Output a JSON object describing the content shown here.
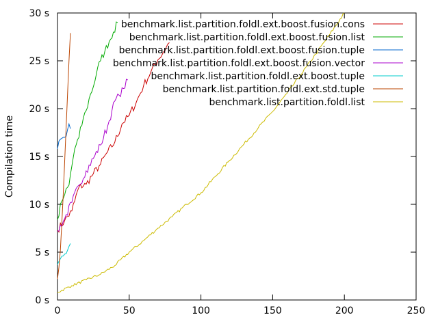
{
  "chart_data": {
    "type": "line",
    "title": "",
    "xlabel": "",
    "ylabel": "Compilation time",
    "xlim": [
      0,
      250
    ],
    "ylim": [
      0,
      30
    ],
    "x_ticks": [
      "0",
      "50",
      "100",
      "150",
      "200",
      "250"
    ],
    "y_ticks": [
      "0 s",
      "5 s",
      "10 s",
      "15 s",
      "20 s",
      "25 s",
      "30 s"
    ],
    "grid": false,
    "legend_position": "top-right",
    "series": [
      {
        "name": "benchmark.list.partition.foldl.ext.boost.fusion.cons",
        "color": "#cc0000",
        "points": [
          [
            0,
            7.3
          ],
          [
            5,
            8.3
          ],
          [
            10,
            9.3
          ],
          [
            15,
            11.8
          ],
          [
            20,
            12.1
          ],
          [
            25,
            13.2
          ],
          [
            30,
            14.2
          ],
          [
            35,
            15.5
          ],
          [
            40,
            16.5
          ],
          [
            45,
            18.4
          ],
          [
            50,
            19.3
          ],
          [
            55,
            20.7
          ],
          [
            60,
            22.4
          ],
          [
            65,
            23.8
          ],
          [
            70,
            25.1
          ],
          [
            78,
            26.9
          ]
        ]
      },
      {
        "name": "benchmark.list.partition.foldl.ext.boost.fusion.list",
        "color": "#00aa00",
        "points": [
          [
            0,
            8.4
          ],
          [
            3,
            10.3
          ],
          [
            5,
            11.0
          ],
          [
            8,
            12.0
          ],
          [
            10,
            14.0
          ],
          [
            12,
            15.8
          ],
          [
            15,
            17.0
          ],
          [
            18,
            19.0
          ],
          [
            20,
            19.8
          ],
          [
            23,
            21.5
          ],
          [
            25,
            22.3
          ],
          [
            28,
            24.3
          ],
          [
            30,
            25.0
          ],
          [
            33,
            26.0
          ],
          [
            36,
            27.0
          ],
          [
            39,
            28.0
          ],
          [
            42,
            29.0
          ]
        ]
      },
      {
        "name": "benchmark.list.partition.foldl.ext.boost.fusion.tuple",
        "color": "#0066cc",
        "points": [
          [
            0,
            15.8
          ],
          [
            1,
            16.6
          ],
          [
            2,
            16.8
          ],
          [
            3,
            16.9
          ],
          [
            4,
            17.0
          ],
          [
            5,
            17.0
          ],
          [
            6,
            17.1
          ],
          [
            7,
            17.8
          ],
          [
            8,
            18.4
          ],
          [
            9,
            17.9
          ]
        ]
      },
      {
        "name": "benchmark.list.partition.foldl.ext.boost.fusion.vector",
        "color": "#aa00cc",
        "points": [
          [
            0,
            7.2
          ],
          [
            5,
            8.5
          ],
          [
            10,
            10.2
          ],
          [
            15,
            12.0
          ],
          [
            20,
            13.5
          ],
          [
            25,
            14.8
          ],
          [
            30,
            16.2
          ],
          [
            35,
            18.2
          ],
          [
            38,
            19.8
          ],
          [
            40,
            20.8
          ],
          [
            43,
            21.4
          ],
          [
            46,
            22.1
          ],
          [
            49,
            23.0
          ]
        ]
      },
      {
        "name": "benchmark.list.partition.foldl.ext.boost.tuple",
        "color": "#00cccc",
        "points": [
          [
            0,
            3.7
          ],
          [
            2,
            4.3
          ],
          [
            4,
            4.6
          ],
          [
            5,
            4.8
          ],
          [
            7,
            5.2
          ],
          [
            8,
            5.6
          ],
          [
            9,
            5.9
          ]
        ]
      },
      {
        "name": "benchmark.list.partition.foldl.ext.std.tuple",
        "color": "#bb4400",
        "points": [
          [
            0,
            2.2
          ],
          [
            1,
            3.4
          ],
          [
            2,
            5.2
          ],
          [
            3,
            8.0
          ],
          [
            4,
            11.0
          ],
          [
            5,
            14.5
          ],
          [
            6,
            18.0
          ],
          [
            7,
            21.5
          ],
          [
            8,
            25.0
          ],
          [
            9,
            27.9
          ]
        ]
      },
      {
        "name": "benchmark.list.partition.foldl.list",
        "color": "#ccbb00",
        "points": [
          [
            0,
            0.8
          ],
          [
            10,
            1.5
          ],
          [
            20,
            2.1
          ],
          [
            30,
            2.7
          ],
          [
            40,
            3.6
          ],
          [
            50,
            5.0
          ],
          [
            60,
            6.2
          ],
          [
            70,
            7.5
          ],
          [
            80,
            8.7
          ],
          [
            90,
            10.0
          ],
          [
            100,
            11.2
          ],
          [
            110,
            12.9
          ],
          [
            120,
            14.6
          ],
          [
            130,
            16.3
          ],
          [
            140,
            18.0
          ],
          [
            150,
            19.7
          ],
          [
            160,
            21.6
          ],
          [
            170,
            23.6
          ],
          [
            180,
            25.7
          ],
          [
            190,
            27.8
          ],
          [
            200,
            30.0
          ]
        ]
      }
    ]
  }
}
